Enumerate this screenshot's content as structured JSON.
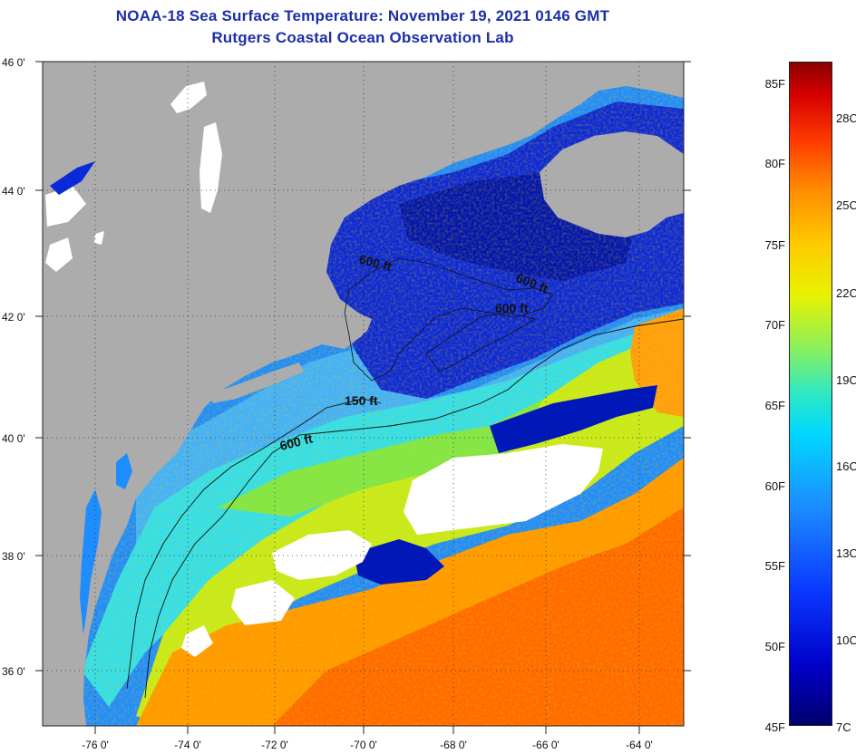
{
  "title": {
    "line1": "NOAA-18 Sea Surface Temperature:  November 19, 2021 0146 GMT",
    "line2": "Rutgers Coastal Ocean Observation Lab"
  },
  "map": {
    "lat_labels": [
      "46 0'",
      "44 0'",
      "42 0'",
      "40 0'",
      "38 0'",
      "36 0'"
    ],
    "lon_labels": [
      "-76 0'",
      "-74 0'",
      "-72 0'",
      "-70 0'",
      "-68 0'",
      "-66 0'",
      "-64 0'"
    ],
    "contour_labels": [
      "600 ft",
      "600 ft",
      "600 ft",
      "150 ft",
      "600 ft"
    ]
  },
  "colorbar": {
    "fahrenheit": [
      "85F",
      "80F",
      "75F",
      "70F",
      "65F",
      "60F",
      "55F",
      "50F",
      "45F"
    ],
    "celsius": [
      "28C",
      "25C",
      "22C",
      "19C",
      "16C",
      "13C",
      "10C",
      "7C"
    ]
  },
  "colors": {
    "title": "#1d2fa8",
    "land": "#acacac",
    "cloud": "#ffffff",
    "cold": "#0a2ad8",
    "cool": "#1e8dff",
    "mild": "#38d8f0",
    "warm": "#e8e000",
    "hot": "#ff9a00"
  }
}
